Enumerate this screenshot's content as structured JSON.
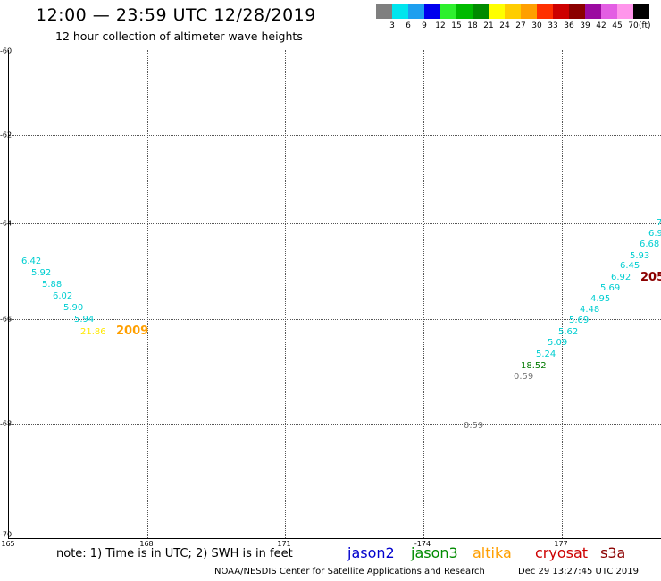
{
  "header": {
    "title": "12:00 — 23:59 UTC 12/28/2019",
    "subtitle": "12 hour collection of altimeter wave heights"
  },
  "legend": {
    "unit": "(ft)",
    "items": [
      {
        "label": "3",
        "color": "#7f7f7f"
      },
      {
        "label": "6",
        "color": "#00e5ee"
      },
      {
        "label": "9",
        "color": "#1e9fef"
      },
      {
        "label": "12",
        "color": "#0000ee"
      },
      {
        "label": "15",
        "color": "#2ef02e"
      },
      {
        "label": "18",
        "color": "#00bb00"
      },
      {
        "label": "21",
        "color": "#008b00"
      },
      {
        "label": "24",
        "color": "#ffff00"
      },
      {
        "label": "27",
        "color": "#ffcd00"
      },
      {
        "label": "30",
        "color": "#ff9f00"
      },
      {
        "label": "33",
        "color": "#ff3000"
      },
      {
        "label": "36",
        "color": "#cd0000"
      },
      {
        "label": "39",
        "color": "#8b0000"
      },
      {
        "label": "42",
        "color": "#9b0aa0"
      },
      {
        "label": "45",
        "color": "#e35ee3"
      },
      {
        "label": "70",
        "color": "#ff95eb"
      },
      {
        "label": "",
        "color": "#000000"
      }
    ]
  },
  "map": {
    "lat_labels": [
      "-60",
      "-62",
      "-64",
      "-66",
      "-68",
      "-70"
    ],
    "lon_labels": [
      "165",
      "168",
      "171",
      "-174",
      "177"
    ]
  },
  "observations": [
    {
      "value": "6.42",
      "color": "#00ced1"
    },
    {
      "value": "5.92",
      "color": "#00ced1"
    },
    {
      "value": "5.88",
      "color": "#00ced1"
    },
    {
      "value": "6.02",
      "color": "#00ced1"
    },
    {
      "value": "5.90",
      "color": "#00ced1"
    },
    {
      "value": "5.94",
      "color": "#00ced1"
    },
    {
      "value": "21.86",
      "color": "#ffe800"
    },
    {
      "value": "0.59",
      "color": "#777777"
    },
    {
      "value": "0.59",
      "color": "#777777"
    },
    {
      "value": "18.52",
      "color": "#007a00"
    },
    {
      "value": "5.24",
      "color": "#00ced1"
    },
    {
      "value": "5.09",
      "color": "#00ced1"
    },
    {
      "value": "5.62",
      "color": "#00ced1"
    },
    {
      "value": "5.69",
      "color": "#00ced1"
    },
    {
      "value": "4.48",
      "color": "#00ced1"
    },
    {
      "value": "4.95",
      "color": "#00ced1"
    },
    {
      "value": "5.69",
      "color": "#00ced1"
    },
    {
      "value": "6.92",
      "color": "#00ced1"
    },
    {
      "value": "6.45",
      "color": "#00ced1"
    },
    {
      "value": "5.93",
      "color": "#00ced1"
    },
    {
      "value": "6.68",
      "color": "#00ced1"
    },
    {
      "value": "6.9",
      "color": "#00ced1"
    },
    {
      "value": "7",
      "color": "#00ced1"
    }
  ],
  "track_labels": [
    {
      "text": "2009",
      "color": "#ff9f00"
    },
    {
      "text": "205",
      "color": "#8b0000"
    }
  ],
  "footer": {
    "note": "note: 1) Time is in UTC; 2) SWH is in feet",
    "satellites": [
      {
        "name": "jason2",
        "color": "#0000cd"
      },
      {
        "name": "jason3",
        "color": "#008b00"
      },
      {
        "name": "altika",
        "color": "#ff9f00"
      },
      {
        "name": "cryosat",
        "color": "#cd0000"
      },
      {
        "name": "s3a",
        "color": "#8b0000"
      }
    ],
    "credit": "NOAA/NESDIS Center for Satellite Applications and Research",
    "timestamp": "Dec 29 13:27:45 UTC 2019"
  }
}
